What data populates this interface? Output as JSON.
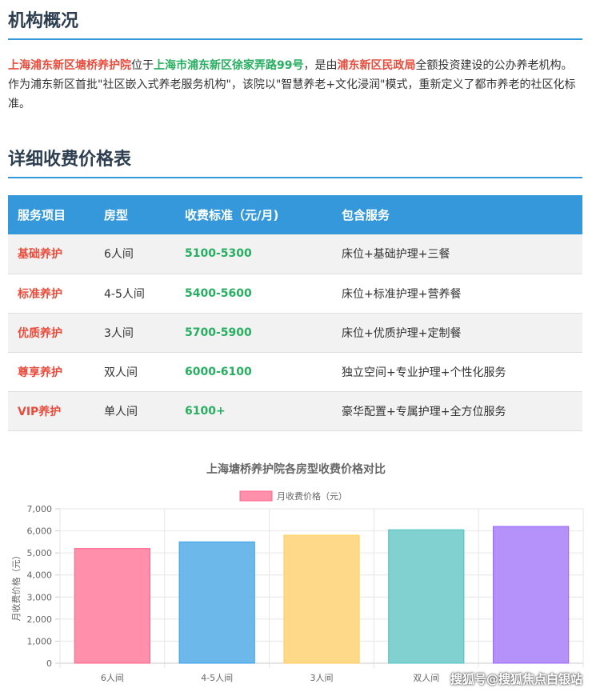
{
  "section1": {
    "title": "机构概况",
    "intro": {
      "name": "上海浦东新区塘桥养护院",
      "t1": "位于",
      "address": "上海市浦东新区徐家弄路99号",
      "t2": "，是由",
      "org": "浦东新区民政局",
      "t3": "全额投资建设的公办养老机构。作为浦东新区首批\"社区嵌入式养老服务机构\"，该院以\"智慧养老+文化浸润\"模式，重新定义了都市养老的社区化标准。"
    }
  },
  "section2": {
    "title": "详细收费价格表",
    "headers": [
      "服务项目",
      "房型",
      "收费标准（元/月)",
      "包含服务"
    ],
    "rows": [
      [
        "基础养护",
        "6人间",
        "5100-5300",
        "床位+基础护理+三餐"
      ],
      [
        "标准养护",
        "4-5人间",
        "5400-5600",
        "床位+标准护理+营养餐"
      ],
      [
        "优质养护",
        "3人间",
        "5700-5900",
        "床位+优质护理+定制餐"
      ],
      [
        "尊享养护",
        "双人间",
        "6000-6100",
        "独立空间+专业护理+个性化服务"
      ],
      [
        "VIP养护",
        "单人间",
        "6100+",
        "豪华配置+专属护理+全方位服务"
      ]
    ]
  },
  "chart_data": {
    "type": "bar",
    "title": "上海塘桥养护院各房型收费价格对比",
    "categories": [
      "6人间",
      "4-5人间",
      "3人间",
      "双人间",
      ""
    ],
    "series": [
      {
        "name": "月收费价格（元）",
        "values": [
          5200,
          5500,
          5800,
          6050,
          6200
        ]
      }
    ],
    "ylabel": "月收费价格（元）",
    "ylim": [
      0,
      7000
    ],
    "yticks": [
      "0",
      "1,000",
      "2,000",
      "3,000",
      "4,000",
      "5,000",
      "6,000",
      "7,000"
    ],
    "colors": [
      "#ff8fab",
      "#6cb8ea",
      "#ffd98a",
      "#82d1d1",
      "#b592fa"
    ],
    "borders": [
      "#ff6384",
      "#36a2eb",
      "#ffce56",
      "#4bc0c0",
      "#9966ff"
    ],
    "legend": "top",
    "grid": true
  },
  "watermark": "搜狐号@搜狐焦点白银站"
}
